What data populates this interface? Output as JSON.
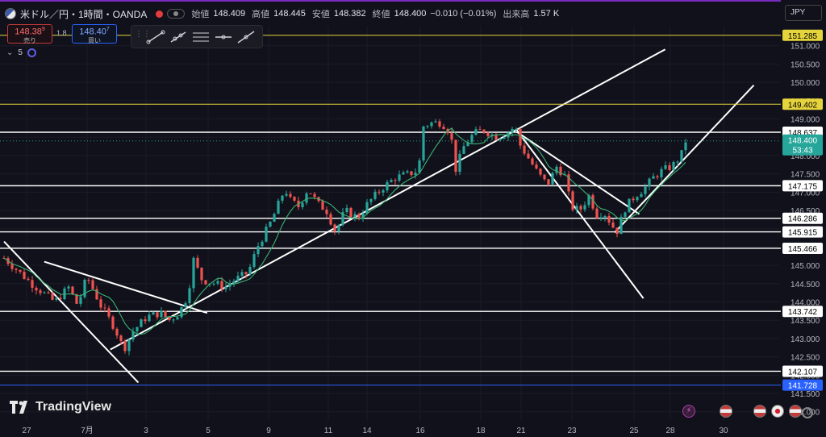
{
  "header": {
    "symbol": "米ドル／円・1時間・OANDA",
    "open_label": "始値",
    "open": "148.409",
    "high_label": "高値",
    "high": "148.445",
    "low_label": "安値",
    "low": "148.382",
    "close_label": "終値",
    "close": "148.400",
    "change": "−0.010 (−0.01%)",
    "volume_label": "出来高",
    "volume": "1.57 K"
  },
  "trade": {
    "sell_price": "148.38",
    "sell_price_sup": "9",
    "sell_label": "売り",
    "buy_price": "148.40",
    "buy_price_sup": "7",
    "buy_label": "買い",
    "spread": "1.8"
  },
  "indicator": {
    "value": "5"
  },
  "currency": "JPY",
  "logo": "TradingView",
  "colors": {
    "background": "#11111b",
    "up": "#26a69a",
    "down": "#ef5350",
    "ma": "#3bb273",
    "level": "#ffffff",
    "yellow": "#e6d43c",
    "blue": "#2962ff"
  },
  "chart_data": {
    "type": "candlestick",
    "y_axis": {
      "ylim": [
        140.95,
        151.5
      ],
      "ticks": [
        "141.000",
        "141.500",
        "142.000",
        "142.500",
        "143.000",
        "143.500",
        "144.000",
        "144.500",
        "145.000",
        "145.500",
        "146.000",
        "146.500",
        "147.000",
        "147.500",
        "148.000",
        "148.500",
        "149.000",
        "149.500",
        "150.000",
        "150.500",
        "151.000"
      ]
    },
    "x_axis": {
      "ticks": [
        "27",
        "7月",
        "3",
        "5",
        "9",
        "11",
        "14",
        "16",
        "18",
        "21",
        "23",
        "25",
        "28",
        "30"
      ]
    },
    "current_price": "148.400",
    "countdown": "53:43",
    "horizontal_levels": [
      {
        "value": 151.285,
        "label": "151.285",
        "color": "#e6d43c"
      },
      {
        "value": 149.402,
        "label": "149.402",
        "color": "#e6d43c"
      },
      {
        "value": 148.637,
        "label": "148.637",
        "color": "#ffffff"
      },
      {
        "value": 147.175,
        "label": "147.175",
        "color": "#ffffff"
      },
      {
        "value": 146.286,
        "label": "146.286",
        "color": "#ffffff"
      },
      {
        "value": 145.915,
        "label": "145.915",
        "color": "#ffffff"
      },
      {
        "value": 145.466,
        "label": "145.466",
        "color": "#ffffff"
      },
      {
        "value": 143.742,
        "label": "143.742",
        "color": "#ffffff"
      },
      {
        "value": 142.107,
        "label": "142.107",
        "color": "#ffffff"
      },
      {
        "value": 141.728,
        "label": "141.728",
        "color": "#2962ff"
      }
    ],
    "price_path": [
      [
        0,
        145.2
      ],
      [
        6,
        144.5
      ],
      [
        11,
        144.0
      ],
      [
        14,
        144.4
      ],
      [
        16,
        143.9
      ],
      [
        18,
        144.7
      ],
      [
        21,
        143.9
      ],
      [
        24,
        143.3
      ],
      [
        26,
        142.7
      ],
      [
        28,
        143.2
      ],
      [
        31,
        143.6
      ],
      [
        34,
        143.7
      ],
      [
        36,
        143.5
      ],
      [
        38,
        143.7
      ],
      [
        40,
        144.2
      ],
      [
        41,
        145.2
      ],
      [
        43,
        144.6
      ],
      [
        46,
        144.5
      ],
      [
        48,
        144.4
      ],
      [
        50,
        144.6
      ],
      [
        53,
        144.8
      ],
      [
        55,
        145.5
      ],
      [
        58,
        146.2
      ],
      [
        61,
        147.1
      ],
      [
        62,
        146.8
      ],
      [
        64,
        146.6
      ],
      [
        66,
        147.1
      ],
      [
        68,
        146.7
      ],
      [
        70,
        146.5
      ],
      [
        72,
        145.9
      ],
      [
        74,
        146.5
      ],
      [
        77,
        146.3
      ],
      [
        79,
        146.7
      ],
      [
        82,
        147.1
      ],
      [
        85,
        147.4
      ],
      [
        88,
        147.5
      ],
      [
        90,
        147.6
      ],
      [
        91,
        148.8
      ],
      [
        93,
        148.9
      ],
      [
        95,
        148.9
      ],
      [
        97,
        148.6
      ],
      [
        98,
        147.6
      ],
      [
        100,
        148.3
      ],
      [
        102,
        148.6
      ],
      [
        104,
        148.7
      ],
      [
        107,
        148.5
      ],
      [
        109,
        148.6
      ],
      [
        111,
        148.8
      ],
      [
        112,
        148.3
      ],
      [
        114,
        147.9
      ],
      [
        116,
        147.5
      ],
      [
        118,
        147.2
      ],
      [
        120,
        147.7
      ],
      [
        122,
        147.4
      ],
      [
        123,
        146.6
      ],
      [
        125,
        146.5
      ],
      [
        127,
        146.9
      ],
      [
        129,
        146.3
      ],
      [
        130,
        146.5
      ],
      [
        132,
        146.1
      ],
      [
        133,
        145.9
      ],
      [
        135,
        146.6
      ],
      [
        137,
        146.9
      ],
      [
        139,
        147.1
      ],
      [
        141,
        147.4
      ],
      [
        143,
        147.6
      ],
      [
        145,
        147.7
      ],
      [
        147,
        148.0
      ],
      [
        148,
        148.4
      ]
    ]
  }
}
